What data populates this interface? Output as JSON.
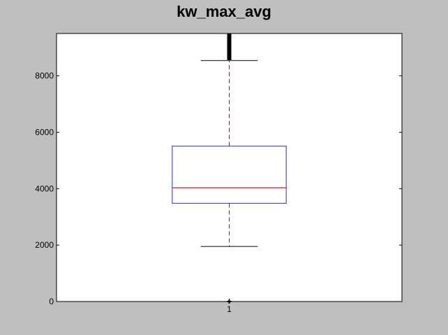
{
  "chart_data": {
    "type": "box",
    "title": "kw_max_avg",
    "xlabel": "",
    "ylabel": "",
    "categories": [
      "1"
    ],
    "ylim": [
      0,
      9500
    ],
    "yticks": [
      0,
      2000,
      4000,
      6000,
      8000
    ],
    "ytick_labels": [
      "0",
      "2000",
      "4000",
      "6000",
      "8000"
    ],
    "boxes": [
      {
        "category": "1",
        "whisker_low": 1950,
        "q1": 3480,
        "median": 4030,
        "q3": 5510,
        "whisker_high": 8540,
        "outliers_low": [
          0
        ],
        "outliers_high_range": [
          8560,
          9500
        ]
      }
    ],
    "grid": false,
    "colors": {
      "box": "#2b2bd0",
      "median": "#e0304a",
      "whisker": "#2b2bd0",
      "cap": "#000000",
      "outlier": "#000000",
      "frame": "#000000",
      "plot_bg": "#ffffff",
      "figure_bg": "#bfbfbf"
    }
  }
}
